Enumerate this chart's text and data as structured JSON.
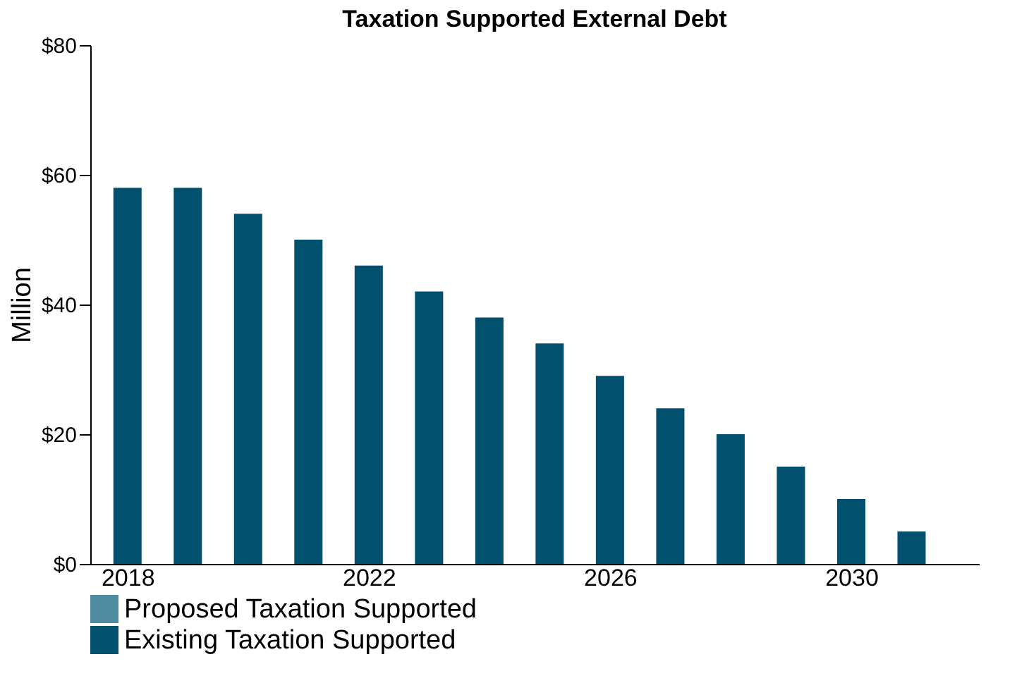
{
  "chart_data": {
    "type": "bar",
    "title": "Taxation Supported External Debt",
    "ylabel": "Million",
    "x": [
      2018,
      2019,
      2020,
      2021,
      2022,
      2023,
      2024,
      2025,
      2026,
      2027,
      2028,
      2029,
      2030,
      2031
    ],
    "series": [
      {
        "name": "Existing Taxation Supported",
        "color": "#00506e",
        "values": [
          58,
          58,
          54,
          50,
          46,
          42,
          38,
          34,
          29,
          24,
          20,
          15,
          10,
          5
        ]
      },
      {
        "name": "Proposed Taxation Supported",
        "color": "#4d8ba0",
        "values": [
          null,
          null,
          null,
          null,
          null,
          null,
          null,
          null,
          null,
          null,
          null,
          null,
          null,
          null
        ]
      }
    ],
    "xlim": [
      2017.5,
      2032
    ],
    "xticks": [
      2018,
      2022,
      2026,
      2030
    ],
    "ylim": [
      0,
      80
    ],
    "yticks": [
      {
        "value": 0,
        "label": "$0"
      },
      {
        "value": 20,
        "label": "$20"
      },
      {
        "value": 40,
        "label": "$40"
      },
      {
        "value": 60,
        "label": "$60"
      },
      {
        "value": 80,
        "label": "$80"
      }
    ],
    "grid": false,
    "legend": "bottom"
  }
}
